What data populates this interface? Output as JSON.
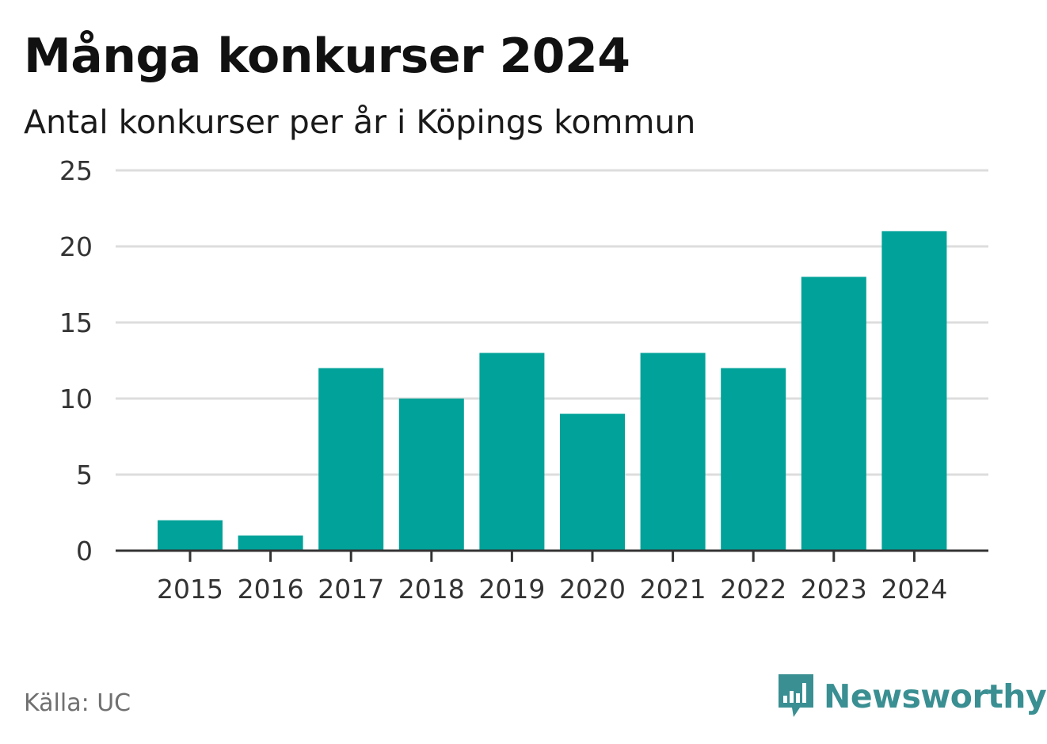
{
  "chart_data": {
    "type": "bar",
    "title": "Många konkurser 2024",
    "subtitle": "Antal konkurser per år i Köpings kommun",
    "categories": [
      "2015",
      "2016",
      "2017",
      "2018",
      "2019",
      "2020",
      "2021",
      "2022",
      "2023",
      "2024"
    ],
    "values": [
      2,
      1,
      12,
      10,
      13,
      9,
      13,
      12,
      18,
      21
    ],
    "ylim": [
      0,
      25
    ],
    "yticks": [
      "0",
      "5",
      "10",
      "15",
      "20",
      "25"
    ],
    "xlabel": "",
    "ylabel": "",
    "grid": true,
    "bar_color": "#00a299"
  },
  "source": "Källa: UC",
  "brand": {
    "name": "Newsworthy",
    "icon": "newsworthy-logo-icon",
    "color": "#3a8f92"
  }
}
